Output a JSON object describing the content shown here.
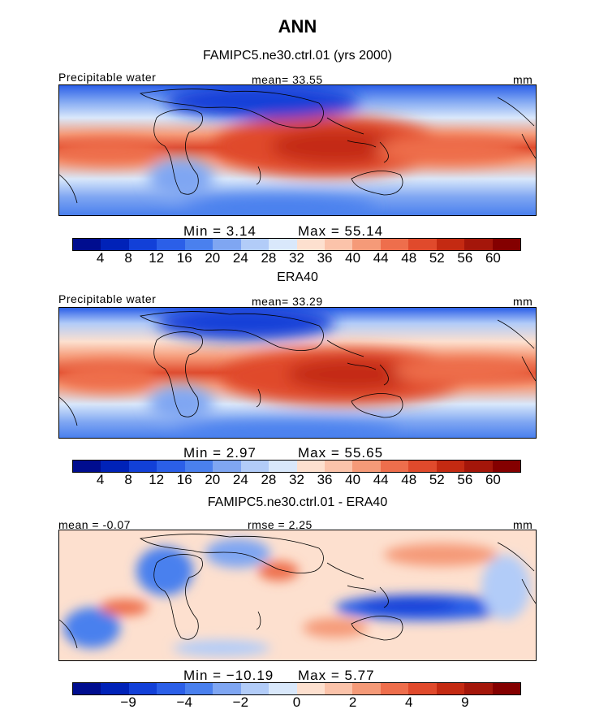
{
  "title": "ANN",
  "panels": [
    {
      "title": "FAMIPC5.ne30.ctrl.01 (yrs 2000)",
      "left_label": "Precipitable water",
      "center_label": "mean=  33.55",
      "right_label": "mm",
      "min_text": "Min =    3.14",
      "max_text": "Max =   55.14",
      "colorbar": {
        "colors": [
          "#000d8f",
          "#0022b8",
          "#1240d8",
          "#2b5fe8",
          "#4a80ee",
          "#7fa6f2",
          "#b2ccf8",
          "#d9e8fb",
          "#fde0cf",
          "#fbc3aa",
          "#f59a78",
          "#ee6e4c",
          "#e04a2c",
          "#c42a12",
          "#a4160a",
          "#840000"
        ],
        "ticks": [
          "4",
          "8",
          "12",
          "16",
          "20",
          "24",
          "28",
          "32",
          "36",
          "40",
          "44",
          "48",
          "52",
          "56",
          "60"
        ]
      }
    },
    {
      "title": "ERA40",
      "left_label": "Precipitable water",
      "center_label": "mean=  33.29",
      "right_label": "mm",
      "min_text": "Min =    2.97",
      "max_text": "Max =   55.65",
      "colorbar": {
        "colors": [
          "#000d8f",
          "#0022b8",
          "#1240d8",
          "#2b5fe8",
          "#4a80ee",
          "#7fa6f2",
          "#b2ccf8",
          "#d9e8fb",
          "#fde0cf",
          "#fbc3aa",
          "#f59a78",
          "#ee6e4c",
          "#e04a2c",
          "#c42a12",
          "#a4160a",
          "#840000"
        ],
        "ticks": [
          "4",
          "8",
          "12",
          "16",
          "20",
          "24",
          "28",
          "32",
          "36",
          "40",
          "44",
          "48",
          "52",
          "56",
          "60"
        ]
      }
    },
    {
      "title": "FAMIPC5.ne30.ctrl.01 - ERA40",
      "left_label": "mean =  -0.07",
      "center_label": "rmse =   2.25",
      "right_label": "mm",
      "min_text": "Min = −10.19",
      "max_text": "Max =    5.77",
      "colorbar": {
        "colors": [
          "#000d8f",
          "#0022b8",
          "#1240d8",
          "#2b5fe8",
          "#4a80ee",
          "#7fa6f2",
          "#b2ccf8",
          "#d9e8fb",
          "#fde0cf",
          "#fbc3aa",
          "#f59a78",
          "#ee6e4c",
          "#e04a2c",
          "#c42a12",
          "#a4160a",
          "#840000"
        ],
        "ticks": [
          "−9",
          "−4",
          "−2",
          "0",
          "2",
          "4",
          "9"
        ]
      }
    }
  ]
}
